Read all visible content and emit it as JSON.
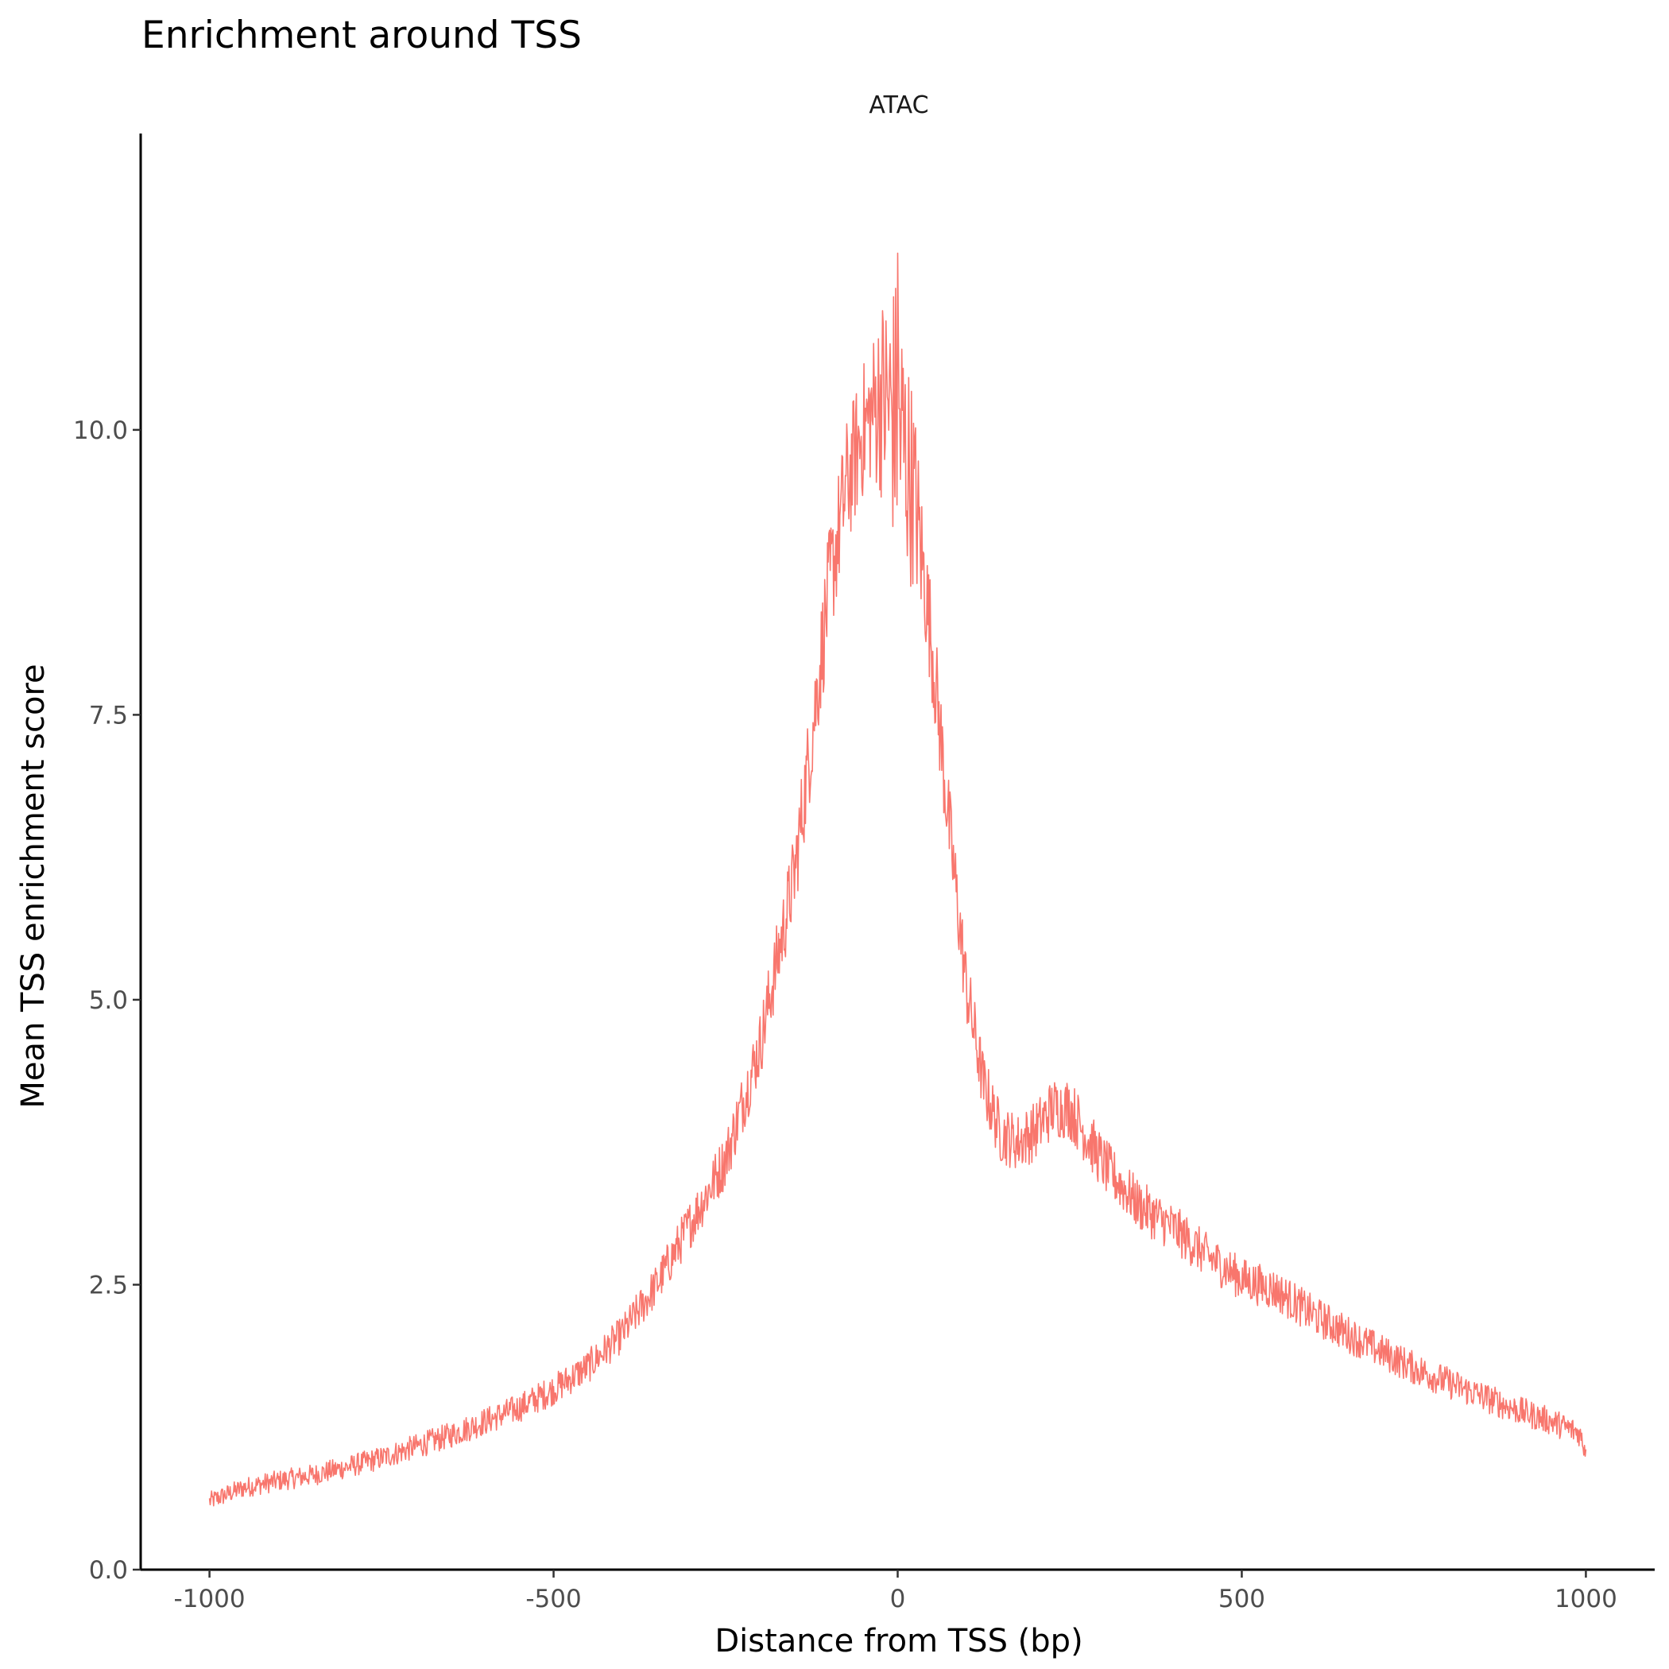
{
  "chart_data": {
    "type": "line",
    "title": "Enrichment around TSS",
    "facet_label": "ATAC",
    "xlabel": "Distance from TSS (bp)",
    "ylabel": "Mean TSS enrichment score",
    "xlim": [
      -1100,
      1100
    ],
    "ylim": [
      0,
      12.6
    ],
    "grid": false,
    "legend": "none",
    "x_ticks": [
      -1000,
      -500,
      0,
      500,
      1000
    ],
    "x_tick_labels": [
      "-1000",
      "-500",
      "0",
      "500",
      "1000"
    ],
    "y_ticks": [
      0,
      2.5,
      5,
      7.5,
      10
    ],
    "y_tick_labels": [
      "0.0",
      "2.5",
      "5.0",
      "7.5",
      "10.0"
    ],
    "line_color": "#F8766D",
    "series": [
      {
        "x": [
          -1000,
          -950,
          -900,
          -850,
          -800,
          -750,
          -700,
          -650,
          -600,
          -550,
          -500,
          -450,
          -400,
          -350,
          -300,
          -250,
          -200,
          -150,
          -125,
          -100,
          -75,
          -50,
          -25,
          0,
          25,
          50,
          75,
          100,
          125,
          150,
          175,
          200,
          225,
          250,
          275,
          300,
          350,
          400,
          450,
          500,
          550,
          600,
          650,
          700,
          750,
          800,
          850,
          900,
          950,
          990,
          1000
        ],
        "values": [
          0.6,
          0.72,
          0.78,
          0.83,
          0.9,
          0.98,
          1.08,
          1.18,
          1.3,
          1.42,
          1.58,
          1.78,
          2.07,
          2.5,
          3.05,
          3.6,
          4.6,
          6.1,
          7.3,
          8.6,
          9.5,
          10.0,
          10.3,
          10.1,
          9.4,
          8.1,
          6.5,
          5.1,
          4.25,
          3.82,
          3.75,
          3.85,
          4.05,
          4.05,
          3.8,
          3.55,
          3.2,
          3.0,
          2.75,
          2.55,
          2.45,
          2.25,
          2.08,
          1.92,
          1.77,
          1.64,
          1.52,
          1.4,
          1.3,
          1.2,
          1.05
        ]
      }
    ]
  }
}
